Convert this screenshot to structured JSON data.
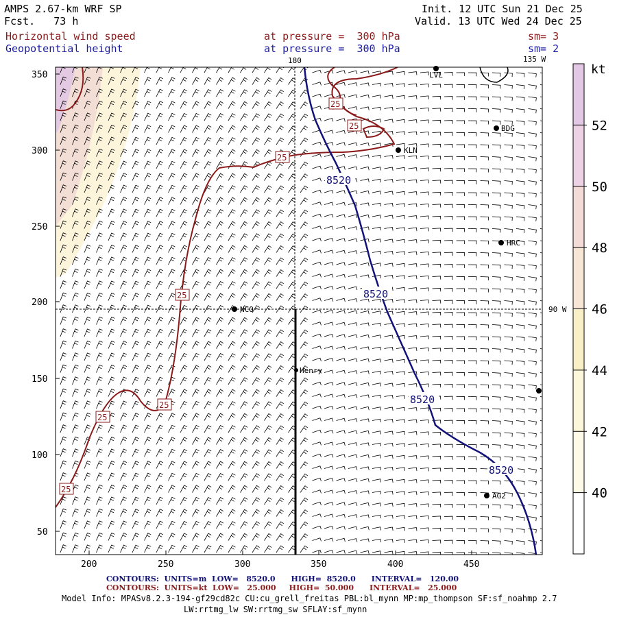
{
  "header": {
    "model": "AMPS 2.67-km WRF SP",
    "fcst": "Fcst.   73 h",
    "init": "Init. 12 UTC Sun 21 Dec 25",
    "valid": "Valid. 13 UTC Wed 24 Dec 25",
    "field1_name": "Horizontal wind speed",
    "field1_level": "at pressure =  300 hPa",
    "field1_sm": "sm= 3",
    "field2_name": "Geopotential height",
    "field2_level": "at pressure =  300 hPa",
    "field2_sm": "sm= 2"
  },
  "colors": {
    "wind_contour": "#8b1a1a",
    "height_contour": "#12127a",
    "shading_40": "#fdfbe4",
    "shading_44": "#faf0c4",
    "shading_48": "#f3dcd2",
    "shading_52": "#e3c8e6"
  },
  "map": {
    "x_ticks": [
      "200",
      "250",
      "300",
      "350",
      "400",
      "450"
    ],
    "y_ticks": [
      "50",
      "100",
      "150",
      "200",
      "250",
      "300",
      "350"
    ],
    "lon_labels": {
      "lon_180": "180",
      "lon_135w": "135 W",
      "lon_90w": "90 W"
    },
    "stations": [
      {
        "name": "LVL"
      },
      {
        "name": "BDG"
      },
      {
        "name": "KLN"
      },
      {
        "name": "HRC"
      },
      {
        "name": "NCO"
      },
      {
        "name": "Henry"
      },
      {
        "name": "AG2"
      },
      {
        "name": ""
      }
    ],
    "height_contour_label": "8520",
    "wind_contour_label": "25"
  },
  "colorbar": {
    "unit": "kt",
    "labels": [
      "52",
      "50",
      "48",
      "46",
      "44",
      "42",
      "40"
    ]
  },
  "footer": {
    "contours_m": "CONTOURS:  UNITS=m  LOW=   8520.0      HIGH=  8520.0      INTERVAL=   120.00",
    "contours_kt": "CONTOURS:  UNITS=kt  LOW=   25.000     HIGH=  50.000      INTERVAL=   25.000",
    "model_info_1": "Model Info: MPASv8.2.3-194-gf29cd82c CU:cu_grell_freitas PBL:bl_mynn MP:mp_thompson SF:sf_noahmp 2.7",
    "model_info_2": "LW:rrtmg_lw SW:rrtmg_sw SFLAY:sf_mynn"
  }
}
